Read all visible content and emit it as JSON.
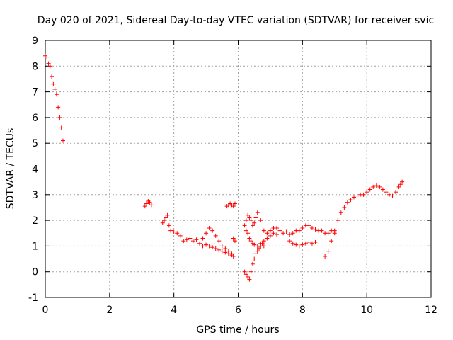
{
  "chart_data": {
    "type": "scatter",
    "title": "Day 020 of 2021, Sidereal Day-to-day VTEC variation (SDTVAR) for receiver svic",
    "xlabel": "GPS time / hours",
    "ylabel": "SDTVAR / TECUs",
    "xlim": [
      0,
      12
    ],
    "ylim": [
      -1,
      9
    ],
    "xticks": [
      "0",
      "2",
      "4",
      "6",
      "8",
      "10",
      "12"
    ],
    "yticks": [
      "-1",
      "0",
      "1",
      "2",
      "3",
      "4",
      "5",
      "6",
      "7",
      "8",
      "9"
    ],
    "grid": true,
    "marker": "+",
    "series": [
      {
        "name": "SDTVAR",
        "color": "#ff0000",
        "x": [
          0.0,
          0.05,
          0.1,
          0.15,
          0.2,
          0.25,
          0.3,
          0.35,
          0.4,
          0.45,
          0.5,
          0.55,
          3.1,
          3.15,
          3.2,
          3.25,
          3.3,
          3.65,
          3.7,
          3.75,
          3.8,
          3.85,
          3.9,
          4.0,
          4.1,
          4.2,
          4.3,
          4.4,
          4.5,
          4.6,
          4.7,
          4.8,
          4.9,
          5.0,
          5.1,
          5.2,
          5.3,
          5.4,
          5.5,
          5.6,
          5.7,
          5.8,
          5.85,
          5.9,
          4.9,
          5.0,
          5.1,
          5.2,
          5.3,
          5.4,
          5.5,
          5.6,
          5.7,
          5.8,
          5.85,
          5.65,
          5.7,
          5.75,
          5.8,
          5.85,
          5.9,
          6.2,
          6.25,
          6.3,
          6.35,
          6.4,
          6.45,
          6.5,
          6.55,
          6.6,
          6.7,
          6.8,
          6.9,
          7.0,
          7.1,
          7.2,
          7.3,
          7.4,
          7.5,
          7.6,
          7.7,
          7.8,
          7.9,
          8.0,
          8.1,
          8.2,
          8.3,
          8.4,
          8.5,
          8.6,
          8.7,
          8.8,
          8.9,
          9.0,
          6.2,
          6.25,
          6.3,
          6.35,
          6.4,
          6.45,
          6.5,
          6.55,
          6.6,
          6.65,
          6.7,
          6.75,
          6.8,
          7.6,
          7.7,
          7.8,
          7.9,
          8.0,
          8.1,
          8.2,
          8.3,
          8.4,
          6.25,
          6.3,
          6.35,
          6.4,
          6.45,
          6.5,
          6.6,
          6.7,
          6.8,
          6.9,
          7.0,
          7.1,
          7.2,
          8.7,
          8.8,
          8.9,
          9.0,
          9.1,
          9.2,
          9.3,
          9.4,
          9.5,
          9.6,
          9.7,
          9.8,
          9.9,
          10.0,
          10.1,
          10.2,
          10.3,
          10.4,
          10.5,
          10.6,
          10.7,
          10.8,
          10.9,
          11.0,
          11.05,
          11.1
        ],
        "y": [
          8.4,
          8.35,
          8.1,
          8.0,
          7.6,
          7.3,
          7.1,
          6.9,
          6.4,
          6.0,
          5.6,
          5.1,
          2.55,
          2.65,
          2.75,
          2.7,
          2.6,
          1.9,
          2.0,
          2.1,
          2.2,
          1.8,
          1.6,
          1.55,
          1.5,
          1.4,
          1.2,
          1.25,
          1.3,
          1.2,
          1.25,
          1.1,
          1.0,
          1.05,
          1.0,
          0.95,
          0.9,
          0.85,
          0.8,
          0.75,
          0.7,
          0.65,
          0.6,
          1.2,
          1.3,
          1.5,
          1.7,
          1.6,
          1.4,
          1.2,
          1.0,
          0.9,
          0.8,
          0.7,
          1.3,
          2.55,
          2.6,
          2.65,
          2.6,
          2.55,
          2.65,
          1.8,
          2.0,
          2.2,
          2.1,
          2.0,
          1.8,
          1.9,
          2.1,
          2.3,
          2.0,
          1.6,
          1.5,
          1.6,
          1.7,
          1.7,
          1.6,
          1.5,
          1.55,
          1.45,
          1.5,
          1.6,
          1.6,
          1.7,
          1.8,
          1.8,
          1.7,
          1.65,
          1.6,
          1.6,
          1.5,
          1.5,
          1.6,
          1.5,
          0.0,
          -0.1,
          -0.2,
          -0.3,
          0.0,
          0.3,
          0.5,
          0.7,
          0.8,
          0.9,
          1.0,
          1.1,
          1.0,
          1.2,
          1.1,
          1.05,
          1.0,
          1.05,
          1.1,
          1.15,
          1.1,
          1.15,
          1.6,
          1.5,
          1.3,
          1.2,
          1.1,
          1.05,
          1.0,
          1.1,
          1.2,
          1.3,
          1.4,
          1.5,
          1.45,
          0.6,
          0.8,
          1.2,
          1.6,
          2.0,
          2.3,
          2.5,
          2.7,
          2.8,
          2.9,
          2.95,
          3.0,
          3.0,
          3.1,
          3.2,
          3.3,
          3.35,
          3.3,
          3.2,
          3.1,
          3.0,
          2.95,
          3.1,
          3.3,
          3.4,
          3.5
        ]
      }
    ]
  }
}
